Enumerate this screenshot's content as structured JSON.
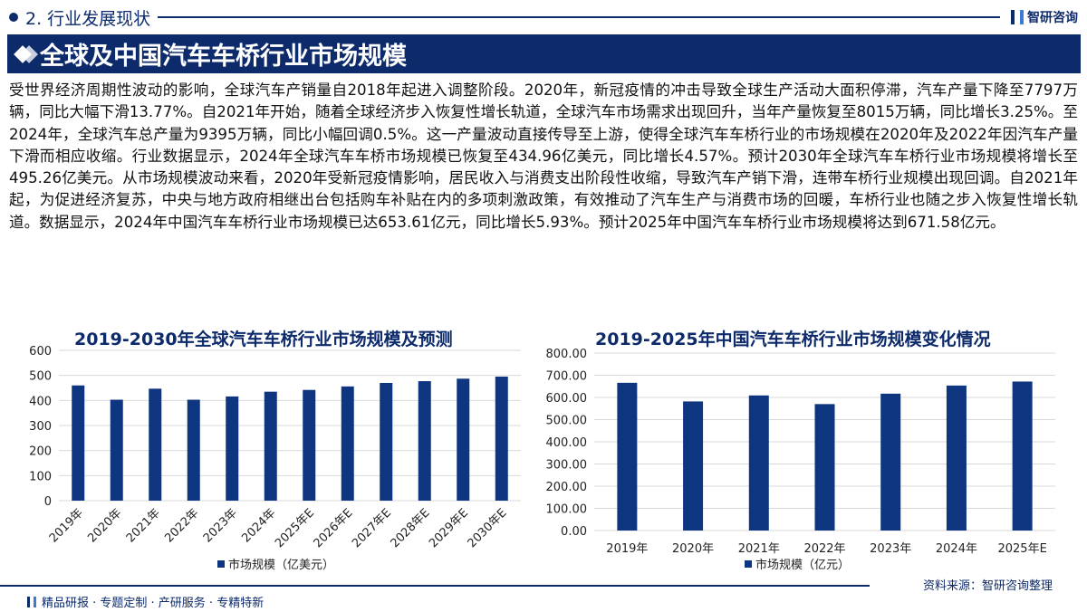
{
  "header": {
    "section": "2. 行业发展现状",
    "logo": "智研咨询"
  },
  "title": "全球及中国汽车车桥行业市场规模",
  "paragraph": "受世界经济周期性波动的影响，全球汽车产销量自2018年起进入调整阶段。2020年，新冠疫情的冲击导致全球生产活动大面积停滞，汽车产量下降至7797万辆，同比大幅下滑13.77%。自2021年开始，随着全球经济步入恢复性增长轨道，全球汽车市场需求出现回升，当年产量恢复至8015万辆，同比增长3.25%。至2024年，全球汽车总产量为9395万辆，同比小幅回调0.5%。这一产量波动直接传导至上游，使得全球汽车车桥行业的市场规模在2020年及2022年因汽车产量下滑而相应收缩。行业数据显示，2024年全球汽车车桥市场规模已恢复至434.96亿美元，同比增长4.57%。预计2030年全球汽车车桥行业市场规模将增长至495.26亿美元。从市场规模波动来看，2020年受新冠疫情影响，居民收入与消费支出阶段性收缩，导致汽车产销下滑，连带车桥行业规模出现回调。自2021年起，为促进经济复苏，中央与地方政府相继出台包括购车补贴在内的多项刺激政策，有效推动了汽车生产与消费市场的回暖，车桥行业也随之步入恢复性增长轨道。数据显示，2024年中国汽车车桥行业市场规模已达653.61亿元，同比增长5.93%。预计2025年中国汽车车桥行业市场规模将达到671.58亿元。",
  "source": "资料来源：智研咨询整理",
  "footer": "精品研报 · 专题定制 · 产研服务 · 专精特新",
  "chart_data": [
    {
      "type": "bar",
      "title": "2019-2030年全球汽车车桥行业市场规模及预测",
      "categories": [
        "2019年",
        "2020年",
        "2021年",
        "2022年",
        "2023年",
        "2024年",
        "2025年E",
        "2026年E",
        "2027年E",
        "2028年E",
        "2029年E",
        "2030年E"
      ],
      "series": [
        {
          "name": "市场规模（亿美元）",
          "values": [
            460,
            403,
            447,
            403,
            416,
            434.96,
            442,
            456,
            470,
            477,
            487,
            495.26
          ]
        }
      ],
      "ylim": [
        0,
        600
      ],
      "yticks": [
        "0",
        "100",
        "200",
        "300",
        "400",
        "500",
        "600"
      ],
      "color": "#0d3580",
      "grid": true,
      "legend": "bottom"
    },
    {
      "type": "bar",
      "title": "2019-2025年中国汽车车桥行业市场规模变化情况",
      "categories": [
        "2019年",
        "2020年",
        "2021年",
        "2022年",
        "2023年",
        "2024年",
        "2025年E"
      ],
      "series": [
        {
          "name": "市场规模（亿元）",
          "values": [
            666,
            582,
            609,
            570,
            617,
            653.61,
            671.58
          ]
        }
      ],
      "ylim": [
        0,
        800
      ],
      "yticks": [
        "0.00",
        "100.00",
        "200.00",
        "300.00",
        "400.00",
        "500.00",
        "600.00",
        "700.00",
        "800.00"
      ],
      "color": "#0d3580",
      "grid": true,
      "legend": "bottom"
    }
  ]
}
